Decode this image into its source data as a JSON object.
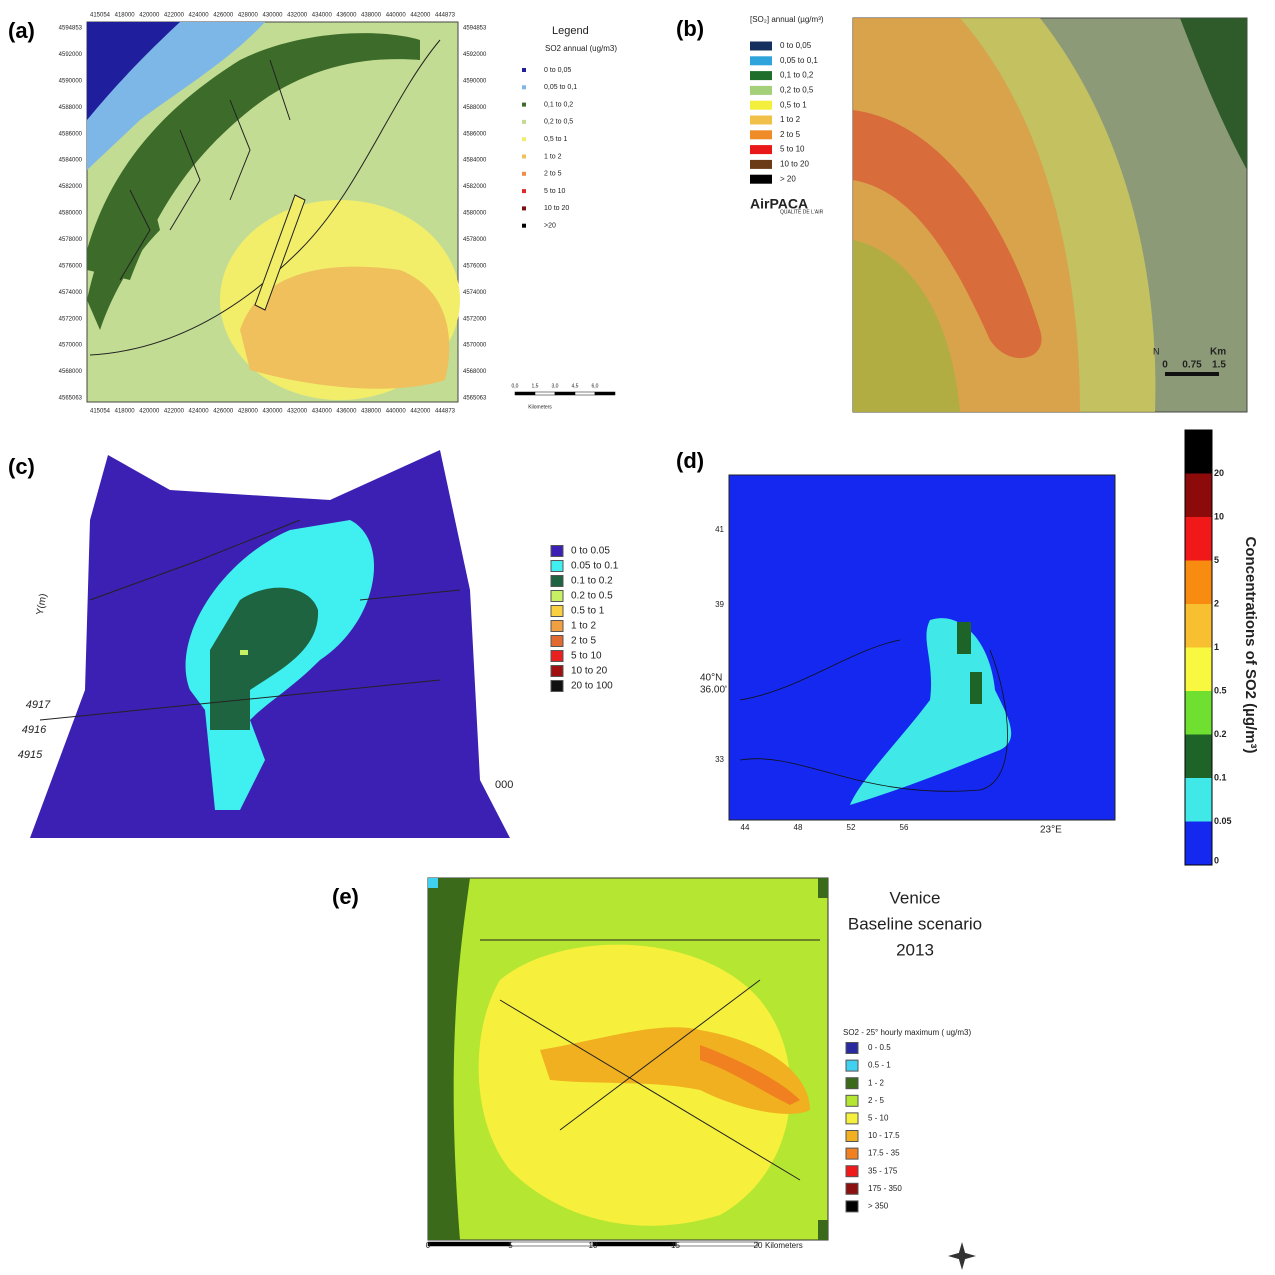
{
  "panels": [
    {
      "label": "(a)",
      "legend_title": "Legend",
      "legend_subtitle": "SO2 annual (ug/m3)",
      "legend": [
        {
          "label": "0 to 0,05",
          "color": "#1f1f9e"
        },
        {
          "label": "0,05 to 0,1",
          "color": "#7db7e8"
        },
        {
          "label": "0,1 to 0,2",
          "color": "#3d6b2a"
        },
        {
          "label": "0,2 to 0,5",
          "color": "#c3dc94"
        },
        {
          "label": "0,5 to 1",
          "color": "#f2ee6a"
        },
        {
          "label": "1 to 2",
          "color": "#efc05c"
        },
        {
          "label": "2 to 5",
          "color": "#ee8c48"
        },
        {
          "label": "5 to 10",
          "color": "#e02828"
        },
        {
          "label": "10 to 20",
          "color": "#7a1010"
        },
        {
          "label": ">20",
          "color": "#000000"
        }
      ],
      "x_ticks": [
        "415054",
        "418000",
        "420000",
        "422000",
        "424000",
        "426000",
        "428000",
        "430000",
        "432000",
        "434000",
        "436000",
        "438000",
        "440000",
        "442000",
        "444873"
      ],
      "y_ticks": [
        "4594853",
        "4592000",
        "4590000",
        "4588000",
        "4586000",
        "4584000",
        "4582000",
        "4580000",
        "4578000",
        "4576000",
        "4574000",
        "4572000",
        "4570000",
        "4568000",
        "4565063"
      ],
      "scale_ticks": [
        "0,0",
        "1,5",
        "3,0",
        "4,5",
        "6,0"
      ],
      "scale_unit": "Kilometers"
    },
    {
      "label": "(b)",
      "legend_title": "[SO₂] annual (µg/m³)",
      "legend": [
        {
          "label": "0 to 0,05",
          "color": "#15305e"
        },
        {
          "label": "0,05 to 0,1",
          "color": "#2fa3dc"
        },
        {
          "label": "0,1 to 0,2",
          "color": "#1f6e2c"
        },
        {
          "label": "0,2 to 0,5",
          "color": "#a4d07a"
        },
        {
          "label": "0,5 to 1",
          "color": "#f4ee3c"
        },
        {
          "label": "1 to 2",
          "color": "#f0c048"
        },
        {
          "label": "2 to 5",
          "color": "#f08c28"
        },
        {
          "label": "5 to 10",
          "color": "#e81818"
        },
        {
          "label": "10 to 20",
          "color": "#6b3a16"
        },
        {
          "label": "> 20",
          "color": "#000000"
        }
      ],
      "logo": "AirPACA",
      "logo_sub": "QUALITÉ DE L'AIR",
      "north": "N",
      "scale_ticks": [
        "0",
        "0.75",
        "1.5"
      ],
      "scale_unit": "Km"
    },
    {
      "label": "(c)",
      "legend": [
        {
          "label": "0  to  0.05",
          "color": "#3c20b4"
        },
        {
          "label": "0.05  to  0.1",
          "color": "#40f0f0"
        },
        {
          "label": "0.1  to  0.2",
          "color": "#1e6440"
        },
        {
          "label": "0.2  to  0.5",
          "color": "#c8f064"
        },
        {
          "label": "0.5  to  1",
          "color": "#f8d040"
        },
        {
          "label": "1  to  2",
          "color": "#f0a040"
        },
        {
          "label": "2  to  5",
          "color": "#e06a30"
        },
        {
          "label": "5  to  10",
          "color": "#e82020"
        },
        {
          "label": "10  to  20",
          "color": "#a01010"
        },
        {
          "label": "20  to  100",
          "color": "#101010"
        }
      ],
      "axis_label": "Y(m)",
      "y_ticks": [
        "4917",
        "4916",
        "4915"
      ],
      "x_tick": "000"
    },
    {
      "label": "(d)",
      "colorbar_title": "Concentrations of SO2 (µg/m³)",
      "colorbar": [
        {
          "label": "0",
          "color": "#1428f0"
        },
        {
          "label": "0.05",
          "color": "#40e8e8"
        },
        {
          "label": "0.1",
          "color": "#1e6428"
        },
        {
          "label": "0.2",
          "color": "#70e030"
        },
        {
          "label": "0.5",
          "color": "#f8f840"
        },
        {
          "label": "1",
          "color": "#f8c030"
        },
        {
          "label": "2",
          "color": "#f88c10"
        },
        {
          "label": "5",
          "color": "#f01818"
        },
        {
          "label": "10",
          "color": "#8c0a0a"
        },
        {
          "label": "20",
          "color": "#000000"
        }
      ],
      "lat_label": "40°N",
      "lat_sub": "36.00'",
      "lon_label": "23°E",
      "x_ticks": [
        "44",
        "48",
        "52",
        "56"
      ],
      "y_ticks": [
        "41",
        "39",
        "33"
      ]
    },
    {
      "label": "(e)",
      "title": [
        "Venice",
        "Baseline scenario",
        "2013"
      ],
      "legend_title": "SO2 - 25° hourly maximum  ( ug/m3)",
      "legend": [
        {
          "label": "0 - 0.5",
          "color": "#2a2aa0"
        },
        {
          "label": "0.5 - 1",
          "color": "#40d0f0"
        },
        {
          "label": "1 - 2",
          "color": "#3a6a1a"
        },
        {
          "label": "2 - 5",
          "color": "#b4e632"
        },
        {
          "label": "5 - 10",
          "color": "#f6f03c"
        },
        {
          "label": "10 - 17.5",
          "color": "#f0b020"
        },
        {
          "label": "17.5 - 35",
          "color": "#f08020"
        },
        {
          "label": "35 - 175",
          "color": "#f01a1a"
        },
        {
          "label": "175 - 350",
          "color": "#8c1010"
        },
        {
          "label": "> 350",
          "color": "#000000"
        }
      ],
      "scale_ticks": [
        "0",
        "5",
        "10",
        "15",
        "20"
      ],
      "scale_unit": "Kilometers"
    }
  ]
}
